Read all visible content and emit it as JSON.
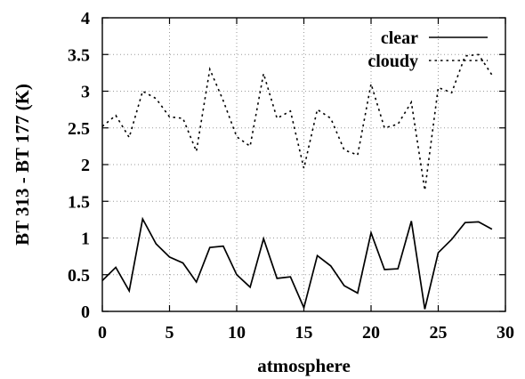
{
  "chart_data": {
    "type": "line",
    "title": "",
    "xlabel": "atmosphere",
    "ylabel": "BT 313 - BT 177 (K)",
    "xlim": [
      0,
      30
    ],
    "ylim": [
      0,
      4
    ],
    "xticks": [
      0,
      5,
      10,
      15,
      20,
      25,
      30
    ],
    "yticks": [
      0,
      0.5,
      1,
      1.5,
      2,
      2.5,
      3,
      3.5,
      4
    ],
    "xtick_labels": [
      "0",
      "5",
      "10",
      "15",
      "20",
      "25",
      "30"
    ],
    "ytick_labels": [
      "0",
      "0.5",
      "1",
      "1.5",
      "2",
      "2.5",
      "3",
      "3.5",
      "4"
    ],
    "grid": true,
    "legend_position": "top-right",
    "x": [
      0,
      1,
      2,
      3,
      4,
      5,
      6,
      7,
      8,
      9,
      10,
      11,
      12,
      13,
      14,
      15,
      16,
      17,
      18,
      19,
      20,
      21,
      22,
      23,
      24,
      25,
      26,
      27,
      28,
      29
    ],
    "series": [
      {
        "name": "clear",
        "line_style": "solid",
        "color": "#000000",
        "values": [
          0.42,
          0.6,
          0.28,
          1.26,
          0.92,
          0.74,
          0.66,
          0.4,
          0.87,
          0.89,
          0.5,
          0.33,
          0.99,
          0.45,
          0.47,
          0.05,
          0.76,
          0.62,
          0.35,
          0.25,
          1.07,
          0.57,
          0.58,
          1.23,
          0.03,
          0.8,
          0.98,
          1.21,
          1.22,
          1.12
        ]
      },
      {
        "name": "cloudy",
        "line_style": "dotted",
        "color": "#000000",
        "values": [
          2.52,
          2.67,
          2.37,
          3.0,
          2.9,
          2.65,
          2.63,
          2.18,
          3.3,
          2.87,
          2.38,
          2.25,
          3.24,
          2.63,
          2.73,
          1.95,
          2.75,
          2.63,
          2.2,
          2.13,
          3.1,
          2.5,
          2.55,
          2.85,
          1.65,
          3.05,
          2.98,
          3.48,
          3.5,
          3.22
        ]
      }
    ]
  }
}
